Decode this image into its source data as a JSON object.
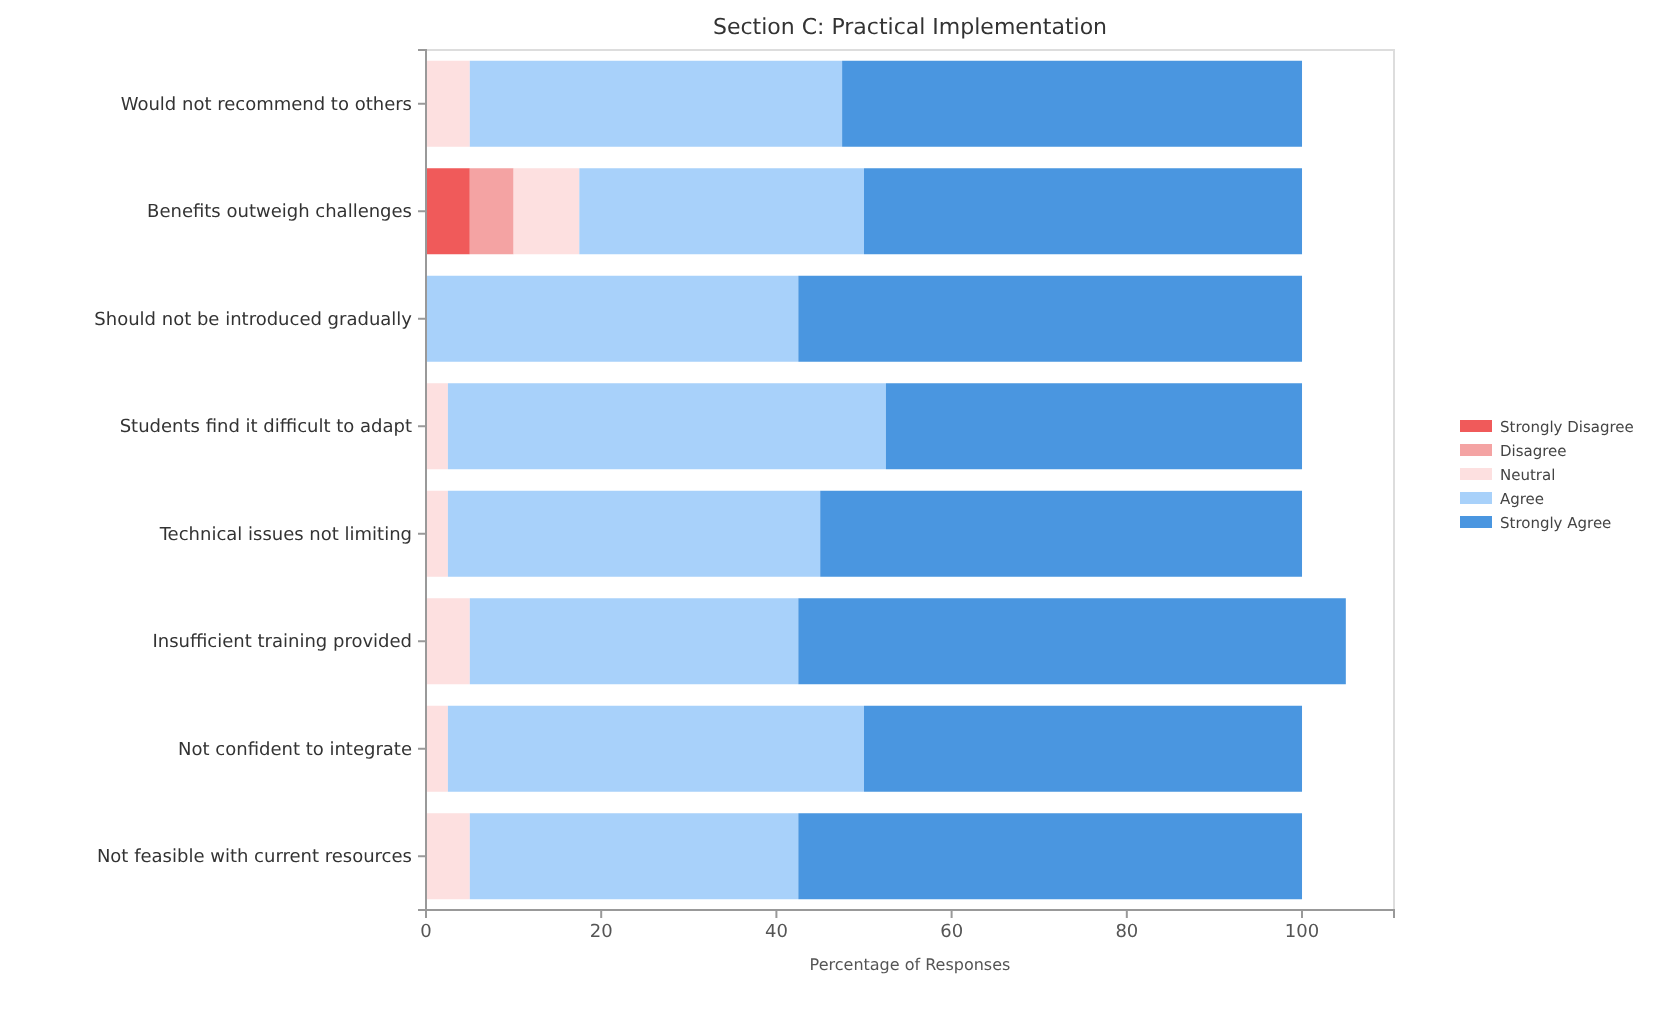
{
  "chart_data": {
    "type": "bar",
    "title": "Section C: Practical Implementation",
    "xlabel": "Percentage of Responses",
    "orientation": "horizontal",
    "stacked": true,
    "legend": "right",
    "categories": [
      "Would not recommend to others",
      "Benefits outweigh challenges",
      "Should not be introduced gradually",
      "Students find it difficult to adapt",
      "Technical issues not limiting",
      "Insufficient training provided",
      "Not confident to integrate",
      "Not feasible with current resources"
    ],
    "xlim": [
      0,
      110.5
    ],
    "xticks": [
      0,
      20,
      40,
      60,
      80,
      100
    ],
    "series": [
      {
        "name": "Strongly Disagree",
        "color": "#f05a5a",
        "values": [
          0,
          5,
          0,
          0,
          0,
          0,
          0,
          0
        ]
      },
      {
        "name": "Disagree",
        "color": "#f4a3a3",
        "values": [
          0,
          5,
          0,
          0,
          0,
          0,
          0,
          0
        ]
      },
      {
        "name": "Neutral",
        "color": "#fde0e0",
        "values": [
          5,
          7.5,
          0,
          2.5,
          2.5,
          5,
          2.5,
          5
        ]
      },
      {
        "name": "Agree",
        "color": "#a8d1fa",
        "values": [
          42.5,
          32.5,
          42.5,
          50,
          42.5,
          37.5,
          47.5,
          37.5
        ]
      },
      {
        "name": "Strongly Agree",
        "color": "#4a96e0",
        "values": [
          52.5,
          50,
          57.5,
          47.5,
          55,
          62.5,
          50,
          57.5
        ]
      }
    ]
  }
}
